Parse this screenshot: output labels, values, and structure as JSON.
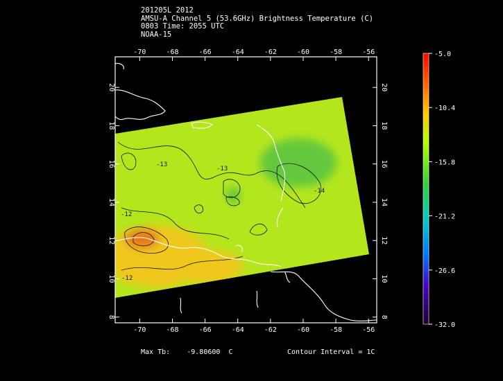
{
  "header": {
    "line1": "201205L 2012",
    "line2": "AMSU-A Channel 5 (53.6GHz) Brightness Temperature (C)",
    "line3": "0803 Time: 2055 UTC",
    "line4": "NOAA-15"
  },
  "map": {
    "lon_ticks": [
      "-70",
      "-68",
      "-66",
      "-64",
      "-62",
      "-60",
      "-58",
      "-56"
    ],
    "lat_ticks": [
      "8",
      "10",
      "12",
      "14",
      "16",
      "18",
      "20"
    ],
    "lon_range": [
      -71.5,
      -55.5
    ],
    "lat_range": [
      7.7,
      21.6
    ],
    "contour_labels": [
      "-13",
      "-13",
      "-12",
      "-12",
      "-14"
    ]
  },
  "colorbar": {
    "labels": [
      "-5.0",
      "-10.4",
      "-15.8",
      "-21.2",
      "-26.6",
      "-32.0"
    ],
    "range": [
      -32.0,
      -5.0
    ]
  },
  "footer": {
    "max_tb_label": "Max Tb:",
    "max_tb_value": "-9.80600",
    "max_tb_unit": "C",
    "contour_interval": "Contour Interval = 1C"
  },
  "colors": {
    "field_main": "#b4e61e",
    "field_warm": "#f0c81e",
    "field_hot": "#e6781e",
    "field_cool": "#64c83c"
  }
}
